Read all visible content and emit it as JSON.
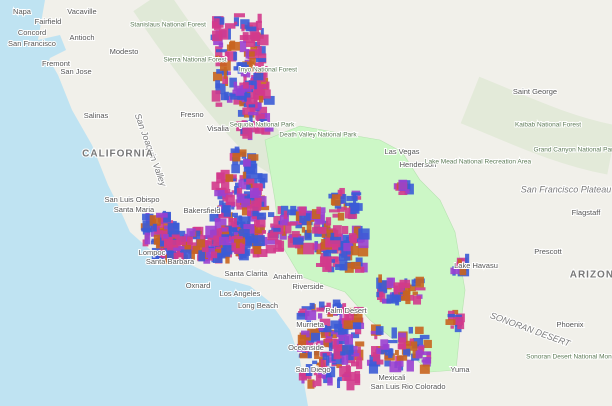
{
  "labels": [
    "Napa",
    "Vacaville",
    "Fairfield",
    "Concord",
    "Antioch",
    "San Francisco",
    "Modesto",
    "Fremont",
    "San Jose",
    "Salinas",
    "San Joaquin Valley",
    "Fresno",
    "Visalia",
    "CALIFORNIA",
    "Stanislaus National Forest",
    "Sierra National Forest",
    "Inyo National Forest",
    "Sequoia National Park",
    "Death Valley National Park",
    "Las Vegas",
    "Henderson",
    "Lake Mead National Recreation Area",
    "Saint George",
    "Kaibab National Forest",
    "Grand Canyon National Park",
    "San Francisco Plateau",
    "Flagstaff",
    "Prescott",
    "ARIZONA",
    "San Luis Obispo",
    "Santa Maria",
    "Lompoc",
    "Santa Barbara",
    "Bakersfield",
    "Oxnard",
    "Santa Clarita",
    "Los Angeles",
    "Long Beach",
    "Anaheim",
    "Riverside",
    "Palm Desert",
    "Murrieta",
    "Oceanside",
    "San Diego",
    "Mexicali",
    "San Luis Rio Colorado",
    "Yuma",
    "Lake Havasu",
    "Phoenix",
    "SONORAN DESERT",
    "Sonoran Desert National Monument"
  ]
}
